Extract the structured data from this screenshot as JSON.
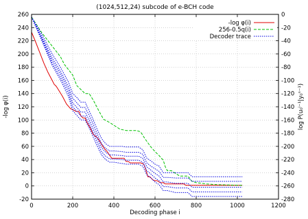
{
  "chart_data": {
    "type": "line",
    "title": "(1024,512,24) subcode of e-BCH code",
    "xlabel": "Decoding phase i",
    "ylabel_left": "-log φ(i)",
    "ylabel_right": "log P(u₀ⁱ⁻¹|y₀ⁿ⁻¹)",
    "xlim": [
      0,
      1200
    ],
    "ylim_left": [
      -20,
      260
    ],
    "ylim_right": [
      -280,
      0
    ],
    "x_ticks": [
      "0",
      "200",
      "400",
      "600",
      "800",
      "1000",
      "1200"
    ],
    "y_left_ticks": [
      "-20",
      "0",
      "20",
      "40",
      "60",
      "80",
      "100",
      "120",
      "140",
      "160",
      "180",
      "200",
      "220",
      "240",
      "260"
    ],
    "y_right_ticks": [
      "-280",
      "-260",
      "-240",
      "-220",
      "-200",
      "-180",
      "-160",
      "-140",
      "-120",
      "-100",
      "-80",
      "-60",
      "-40",
      "-20",
      "0"
    ],
    "legend_position": "top-right",
    "grid": true,
    "series": [
      {
        "name": "-log φ(i)",
        "color": "#e00000",
        "dash": "solid",
        "axis": "left",
        "points": [
          [
            0,
            233
          ],
          [
            20,
            218
          ],
          [
            40,
            202
          ],
          [
            60,
            186
          ],
          [
            80,
            172
          ],
          [
            100,
            160
          ],
          [
            110,
            154
          ],
          [
            120,
            151
          ],
          [
            130,
            146
          ],
          [
            150,
            136
          ],
          [
            170,
            124
          ],
          [
            190,
            117
          ],
          [
            200,
            116
          ],
          [
            215,
            113
          ],
          [
            230,
            113
          ],
          [
            240,
            106
          ],
          [
            250,
            103
          ],
          [
            260,
            103
          ],
          [
            270,
            96
          ],
          [
            285,
            88
          ],
          [
            300,
            78
          ],
          [
            320,
            73
          ],
          [
            335,
            66
          ],
          [
            350,
            58
          ],
          [
            370,
            51
          ],
          [
            380,
            46
          ],
          [
            390,
            42
          ],
          [
            420,
            42
          ],
          [
            450,
            42
          ],
          [
            460,
            37
          ],
          [
            470,
            37
          ],
          [
            480,
            35
          ],
          [
            530,
            35
          ],
          [
            545,
            33
          ],
          [
            555,
            25
          ],
          [
            565,
            14
          ],
          [
            575,
            14
          ],
          [
            590,
            9
          ],
          [
            600,
            8
          ],
          [
            610,
            8
          ],
          [
            625,
            5
          ],
          [
            640,
            5
          ],
          [
            650,
            3
          ],
          [
            700,
            3
          ],
          [
            740,
            3
          ],
          [
            750,
            1
          ],
          [
            1010,
            1
          ],
          [
            1024,
            1
          ]
        ]
      },
      {
        "name": "256-0.5q(i)",
        "color": "#00c000",
        "dash": "dashed",
        "axis": "left",
        "points": [
          [
            0,
            256
          ],
          [
            50,
            232
          ],
          [
            100,
            212
          ],
          [
            140,
            196
          ],
          [
            160,
            184
          ],
          [
            200,
            168
          ],
          [
            220,
            152
          ],
          [
            240,
            146
          ],
          [
            260,
            140
          ],
          [
            280,
            140
          ],
          [
            300,
            130
          ],
          [
            330,
            112
          ],
          [
            350,
            101
          ],
          [
            380,
            96
          ],
          [
            400,
            92
          ],
          [
            430,
            86
          ],
          [
            460,
            84
          ],
          [
            490,
            84
          ],
          [
            510,
            84
          ],
          [
            530,
            82
          ],
          [
            550,
            72
          ],
          [
            580,
            59
          ],
          [
            600,
            52
          ],
          [
            620,
            46
          ],
          [
            640,
            39
          ],
          [
            650,
            29
          ],
          [
            660,
            23
          ],
          [
            680,
            23
          ],
          [
            700,
            19
          ],
          [
            720,
            15
          ],
          [
            760,
            15
          ],
          [
            780,
            7
          ],
          [
            800,
            5
          ],
          [
            850,
            3
          ],
          [
            900,
            2
          ],
          [
            1024,
            1
          ]
        ]
      },
      {
        "name": "Decoder trace",
        "color": "#0000e0",
        "dash": "dotted",
        "axis": "left",
        "points": [
          [
            0,
            256
          ],
          [
            50,
            230
          ],
          [
            100,
            200
          ],
          [
            140,
            180
          ],
          [
            180,
            157
          ],
          [
            200,
            140
          ],
          [
            220,
            134
          ],
          [
            240,
            127
          ],
          [
            260,
            127
          ],
          [
            280,
            114
          ],
          [
            300,
            100
          ],
          [
            320,
            85
          ],
          [
            340,
            72
          ],
          [
            360,
            64
          ],
          [
            380,
            60
          ],
          [
            400,
            60
          ],
          [
            440,
            60
          ],
          [
            460,
            59
          ],
          [
            500,
            59
          ],
          [
            520,
            59
          ],
          [
            540,
            55
          ],
          [
            560,
            42
          ],
          [
            580,
            38
          ],
          [
            600,
            33
          ],
          [
            620,
            30
          ],
          [
            640,
            20
          ],
          [
            660,
            20
          ],
          [
            700,
            20
          ],
          [
            760,
            20
          ],
          [
            780,
            14
          ],
          [
            800,
            14
          ],
          [
            1010,
            14
          ],
          [
            1024,
            14
          ]
        ]
      },
      {
        "name": "",
        "color": "#0000e0",
        "dash": "dotted",
        "axis": "left",
        "points": [
          [
            0,
            256
          ],
          [
            50,
            226
          ],
          [
            100,
            194
          ],
          [
            140,
            174
          ],
          [
            180,
            150
          ],
          [
            200,
            133
          ],
          [
            220,
            126
          ],
          [
            240,
            119
          ],
          [
            260,
            119
          ],
          [
            280,
            107
          ],
          [
            300,
            93
          ],
          [
            320,
            78
          ],
          [
            340,
            64
          ],
          [
            360,
            57
          ],
          [
            380,
            53
          ],
          [
            400,
            53
          ],
          [
            440,
            52
          ],
          [
            460,
            51
          ],
          [
            500,
            51
          ],
          [
            520,
            51
          ],
          [
            540,
            48
          ],
          [
            560,
            35
          ],
          [
            580,
            30
          ],
          [
            600,
            26
          ],
          [
            620,
            22
          ],
          [
            640,
            13
          ],
          [
            660,
            13
          ],
          [
            700,
            12
          ],
          [
            760,
            12
          ],
          [
            780,
            7
          ],
          [
            800,
            7
          ],
          [
            1010,
            7
          ],
          [
            1024,
            7
          ]
        ]
      },
      {
        "name": "",
        "color": "#0000e0",
        "dash": "dotted",
        "axis": "left",
        "points": [
          [
            0,
            256
          ],
          [
            50,
            224
          ],
          [
            100,
            190
          ],
          [
            140,
            170
          ],
          [
            180,
            145
          ],
          [
            200,
            126
          ],
          [
            220,
            119
          ],
          [
            240,
            112
          ],
          [
            260,
            112
          ],
          [
            280,
            100
          ],
          [
            300,
            86
          ],
          [
            320,
            72
          ],
          [
            340,
            58
          ],
          [
            360,
            51
          ],
          [
            380,
            47
          ],
          [
            400,
            47
          ],
          [
            440,
            46
          ],
          [
            460,
            45
          ],
          [
            500,
            45
          ],
          [
            520,
            45
          ],
          [
            540,
            42
          ],
          [
            560,
            29
          ],
          [
            580,
            24
          ],
          [
            600,
            19
          ],
          [
            620,
            15
          ],
          [
            640,
            6
          ],
          [
            660,
            6
          ],
          [
            700,
            4
          ],
          [
            760,
            4
          ],
          [
            780,
            -2
          ],
          [
            800,
            -2
          ],
          [
            1010,
            -2
          ],
          [
            1024,
            -2
          ]
        ]
      },
      {
        "name": "",
        "color": "#0000e0",
        "dash": "dotted",
        "axis": "left",
        "points": [
          [
            0,
            256
          ],
          [
            50,
            222
          ],
          [
            100,
            186
          ],
          [
            140,
            165
          ],
          [
            180,
            140
          ],
          [
            200,
            120
          ],
          [
            220,
            113
          ],
          [
            240,
            106
          ],
          [
            260,
            106
          ],
          [
            280,
            94
          ],
          [
            300,
            80
          ],
          [
            320,
            66
          ],
          [
            340,
            52
          ],
          [
            360,
            45
          ],
          [
            380,
            41
          ],
          [
            400,
            41
          ],
          [
            440,
            40
          ],
          [
            460,
            39
          ],
          [
            500,
            39
          ],
          [
            520,
            39
          ],
          [
            540,
            36
          ],
          [
            560,
            23
          ],
          [
            580,
            18
          ],
          [
            600,
            12
          ],
          [
            620,
            8
          ],
          [
            640,
            -1
          ],
          [
            660,
            -1
          ],
          [
            700,
            -3
          ],
          [
            760,
            -3
          ],
          [
            780,
            -9
          ],
          [
            800,
            -9
          ],
          [
            1010,
            -9
          ],
          [
            1024,
            -9
          ]
        ]
      },
      {
        "name": "",
        "color": "#0000e0",
        "dash": "dotted",
        "axis": "left",
        "points": [
          [
            0,
            256
          ],
          [
            50,
            220
          ],
          [
            100,
            183
          ],
          [
            140,
            161
          ],
          [
            180,
            135
          ],
          [
            200,
            114
          ],
          [
            220,
            107
          ],
          [
            240,
            100
          ],
          [
            260,
            100
          ],
          [
            280,
            88
          ],
          [
            300,
            74
          ],
          [
            320,
            60
          ],
          [
            340,
            47
          ],
          [
            360,
            40
          ],
          [
            380,
            36
          ],
          [
            400,
            36
          ],
          [
            440,
            34
          ],
          [
            460,
            33
          ],
          [
            500,
            33
          ],
          [
            520,
            33
          ],
          [
            540,
            30
          ],
          [
            560,
            17
          ],
          [
            580,
            12
          ],
          [
            600,
            6
          ],
          [
            620,
            2
          ],
          [
            640,
            -7
          ],
          [
            660,
            -7
          ],
          [
            700,
            -10
          ],
          [
            760,
            -10
          ],
          [
            780,
            -16
          ],
          [
            800,
            -16
          ],
          [
            1010,
            -16
          ],
          [
            1024,
            -16
          ]
        ]
      }
    ]
  }
}
